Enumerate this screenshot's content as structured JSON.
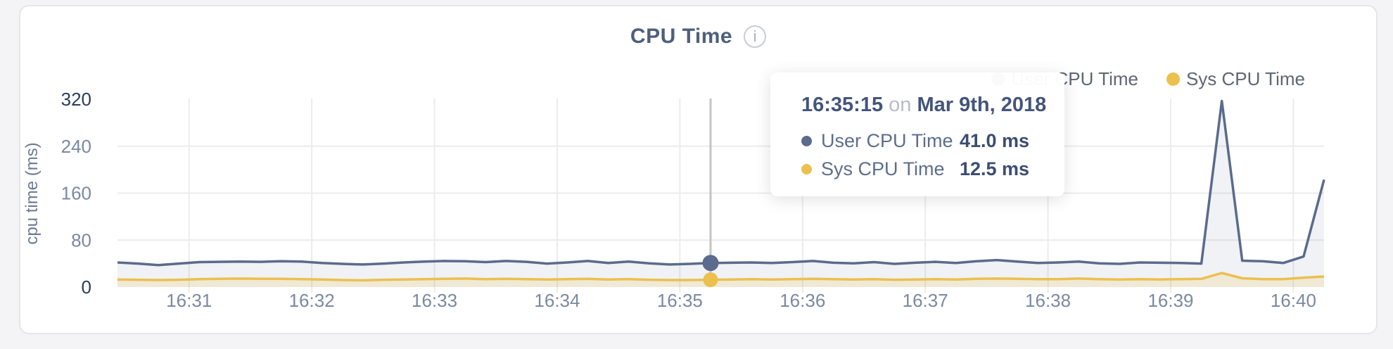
{
  "card": {
    "title": "CPU Time",
    "info_icon": "i"
  },
  "legend": [
    {
      "label": "User CPU Time",
      "color": "#5b6b8d"
    },
    {
      "label": "Sys CPU Time",
      "color": "#ecc04f"
    }
  ],
  "tooltip": {
    "time": "16:35:15",
    "connector": "on",
    "date": "Mar 9th, 2018",
    "rows": [
      {
        "label": "User CPU Time",
        "value": "41.0 ms",
        "color": "#5b6b8d"
      },
      {
        "label": "Sys CPU Time",
        "value": "12.5 ms",
        "color": "#ecc04f"
      }
    ]
  },
  "chart_data": {
    "type": "area",
    "title": "CPU Time",
    "xlabel": "",
    "ylabel": "cpu time (ms)",
    "ylim": [
      0,
      320
    ],
    "yticks": [
      0,
      80,
      160,
      240,
      320
    ],
    "xtick_labels": [
      "16:31",
      "16:32",
      "16:33",
      "16:34",
      "16:35",
      "16:36",
      "16:37",
      "16:38",
      "16:39",
      "16:40"
    ],
    "grid": true,
    "legend_position": "top-right",
    "x": [
      "16:30:25",
      "16:30:35",
      "16:30:45",
      "16:30:55",
      "16:31:05",
      "16:31:15",
      "16:31:25",
      "16:31:35",
      "16:31:45",
      "16:31:55",
      "16:32:05",
      "16:32:15",
      "16:32:25",
      "16:32:35",
      "16:32:45",
      "16:32:55",
      "16:33:05",
      "16:33:15",
      "16:33:25",
      "16:33:35",
      "16:33:45",
      "16:33:55",
      "16:34:05",
      "16:34:15",
      "16:34:25",
      "16:34:35",
      "16:34:45",
      "16:34:55",
      "16:35:05",
      "16:35:15",
      "16:35:25",
      "16:35:35",
      "16:35:45",
      "16:35:55",
      "16:36:05",
      "16:36:15",
      "16:36:25",
      "16:36:35",
      "16:36:45",
      "16:36:55",
      "16:37:05",
      "16:37:15",
      "16:37:25",
      "16:37:35",
      "16:37:45",
      "16:37:55",
      "16:38:05",
      "16:38:15",
      "16:38:25",
      "16:38:35",
      "16:38:45",
      "16:38:55",
      "16:39:05",
      "16:39:15",
      "16:39:25",
      "16:39:35",
      "16:39:45",
      "16:39:55",
      "16:40:05",
      "16:40:15"
    ],
    "series": [
      {
        "name": "User CPU Time",
        "color": "#5b6b8d",
        "fill_opacity": 0.09,
        "values": [
          42,
          40,
          37.5,
          40,
          42.5,
          43,
          43.5,
          43,
          44,
          43.5,
          41,
          39.5,
          38.5,
          40,
          42,
          43.5,
          44.5,
          44,
          42.5,
          44.5,
          43,
          40,
          42,
          44.5,
          41,
          43.5,
          40.5,
          38.5,
          39.5,
          41,
          41.5,
          42,
          41,
          42.5,
          44.5,
          41.5,
          40.5,
          42.5,
          39.5,
          41.5,
          43,
          41,
          44,
          46,
          43.5,
          41,
          42,
          43.5,
          40.5,
          39.5,
          42,
          41.5,
          41,
          40,
          317,
          45,
          44,
          41,
          52,
          183
        ]
      },
      {
        "name": "Sys CPU Time",
        "color": "#ecc04f",
        "fill_opacity": 0.18,
        "values": [
          13,
          12.5,
          12,
          12.5,
          13.5,
          14,
          14.5,
          14,
          14,
          13.5,
          13,
          12,
          11.5,
          12.5,
          13,
          13.5,
          14,
          14.5,
          13.5,
          14,
          13.5,
          13,
          13.5,
          14,
          13,
          13.5,
          12.5,
          12,
          12,
          12.5,
          13,
          13.5,
          13,
          13.5,
          14,
          13.5,
          13,
          13.5,
          12.5,
          13,
          13.5,
          13,
          14,
          14.5,
          14,
          13.5,
          13.5,
          14.5,
          13.5,
          13,
          13.5,
          13,
          13.5,
          14,
          24,
          15,
          13.5,
          13.5,
          16,
          18
        ]
      }
    ],
    "hover": {
      "time": "16:35:15",
      "date": "Mar 9th, 2018",
      "values": {
        "User CPU Time": 41.0,
        "Sys CPU Time": 12.5
      }
    },
    "colors": {
      "grid": "#ececec",
      "hover_line": "#c2c4c6",
      "tick": "#7b89a1",
      "tick_emphasis": "#2b3c5f",
      "axis_title": "#6b7a94"
    }
  }
}
